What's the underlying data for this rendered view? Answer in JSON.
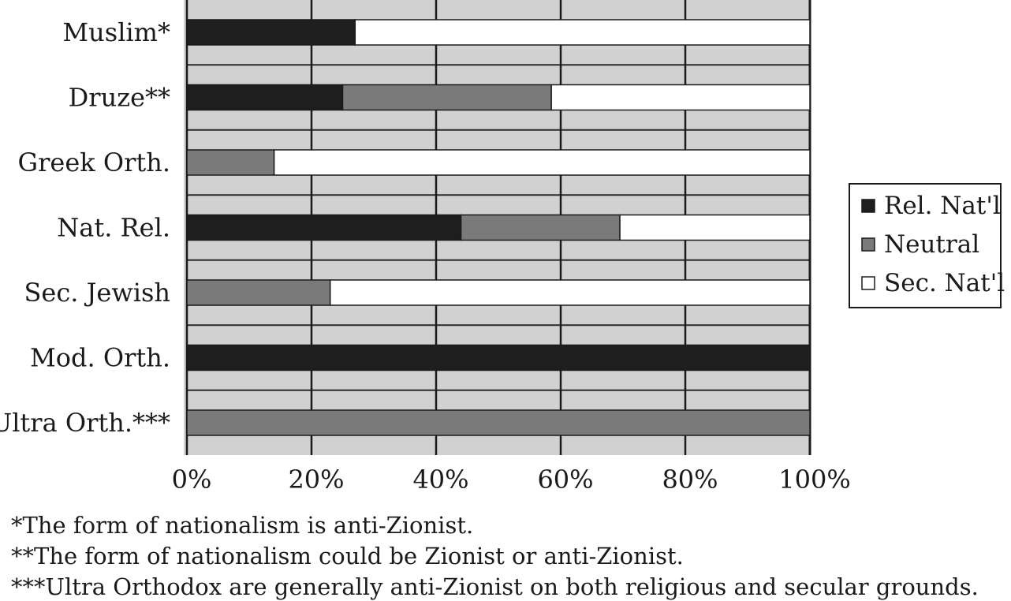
{
  "chart_data": {
    "type": "bar",
    "orientation": "horizontal",
    "stacked": true,
    "categories": [
      "Muslim*",
      "Druze**",
      "Greek Orth.",
      "Nat. Rel.",
      "Sec. Jewish",
      "Mod. Orth.",
      "Ultra Orth.***"
    ],
    "series": [
      {
        "name": "Rel. Nat'l",
        "color": "#1e1e1e",
        "values": [
          27,
          25,
          0,
          44,
          0,
          100,
          0
        ]
      },
      {
        "name": "Neutral",
        "color": "#7a7a7a",
        "values": [
          0,
          33.5,
          14,
          25.5,
          23,
          0,
          100
        ]
      },
      {
        "name": "Sec. Nat'l",
        "color": "#ffffff",
        "values": [
          73,
          41.5,
          86,
          30.5,
          77,
          0,
          0
        ]
      }
    ],
    "xticks": [
      "0%",
      "20%",
      "40%",
      "60%",
      "80%",
      "100%"
    ],
    "xlim": [
      0,
      100
    ],
    "grid": true,
    "legend_position": "right",
    "plot_background": "#d1d1d1",
    "footnotes": [
      "*The form of nationalism is anti-Zionist.",
      "**The form of nationalism could be Zionist or anti-Zionist.",
      "***Ultra Orthodox are generally anti-Zionist on both religious and secular grounds."
    ]
  }
}
